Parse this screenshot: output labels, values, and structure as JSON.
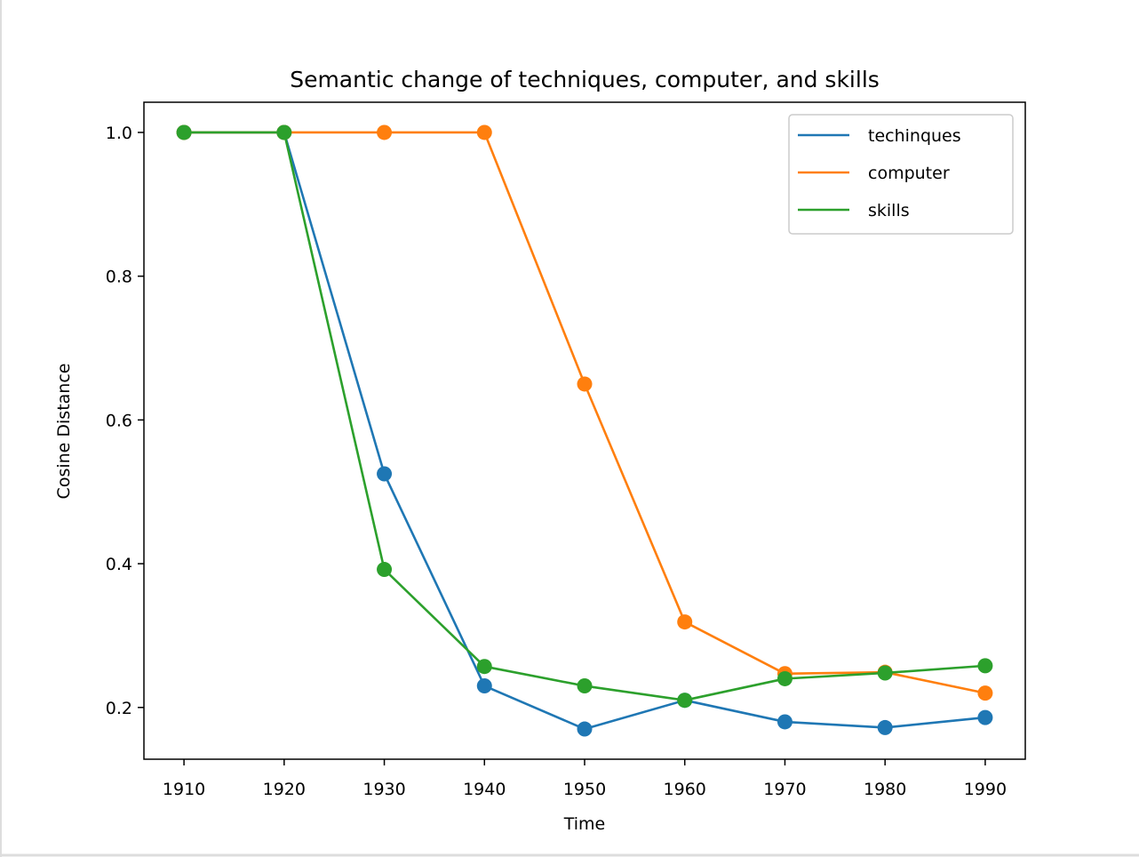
{
  "chart_data": {
    "type": "line",
    "title": "Semantic change of techniques, computer, and skills",
    "xlabel": "Time",
    "ylabel": "Cosine Distance",
    "x": [
      1910,
      1920,
      1930,
      1940,
      1950,
      1960,
      1970,
      1980,
      1990
    ],
    "xticks": [
      "1910",
      "1920",
      "1930",
      "1940",
      "1950",
      "1960",
      "1970",
      "1980",
      "1990"
    ],
    "yticks": [
      "0.2",
      "0.4",
      "0.6",
      "0.8",
      "1.0"
    ],
    "xlim": [
      1906,
      1994
    ],
    "ylim": [
      0.128,
      1.042
    ],
    "grid": false,
    "legend_position": "top-right",
    "series": [
      {
        "name": "techinques",
        "color": "#1f77b4",
        "values": [
          1.0,
          1.0,
          0.525,
          0.23,
          0.17,
          0.21,
          0.18,
          0.172,
          0.186
        ]
      },
      {
        "name": "computer",
        "color": "#ff7f0e",
        "values": [
          1.0,
          1.0,
          1.0,
          1.0,
          0.65,
          0.319,
          0.247,
          0.249,
          0.22
        ]
      },
      {
        "name": "skills",
        "color": "#2ca02c",
        "values": [
          1.0,
          1.0,
          0.392,
          0.257,
          0.23,
          0.21,
          0.24,
          0.248,
          0.258
        ]
      }
    ]
  }
}
